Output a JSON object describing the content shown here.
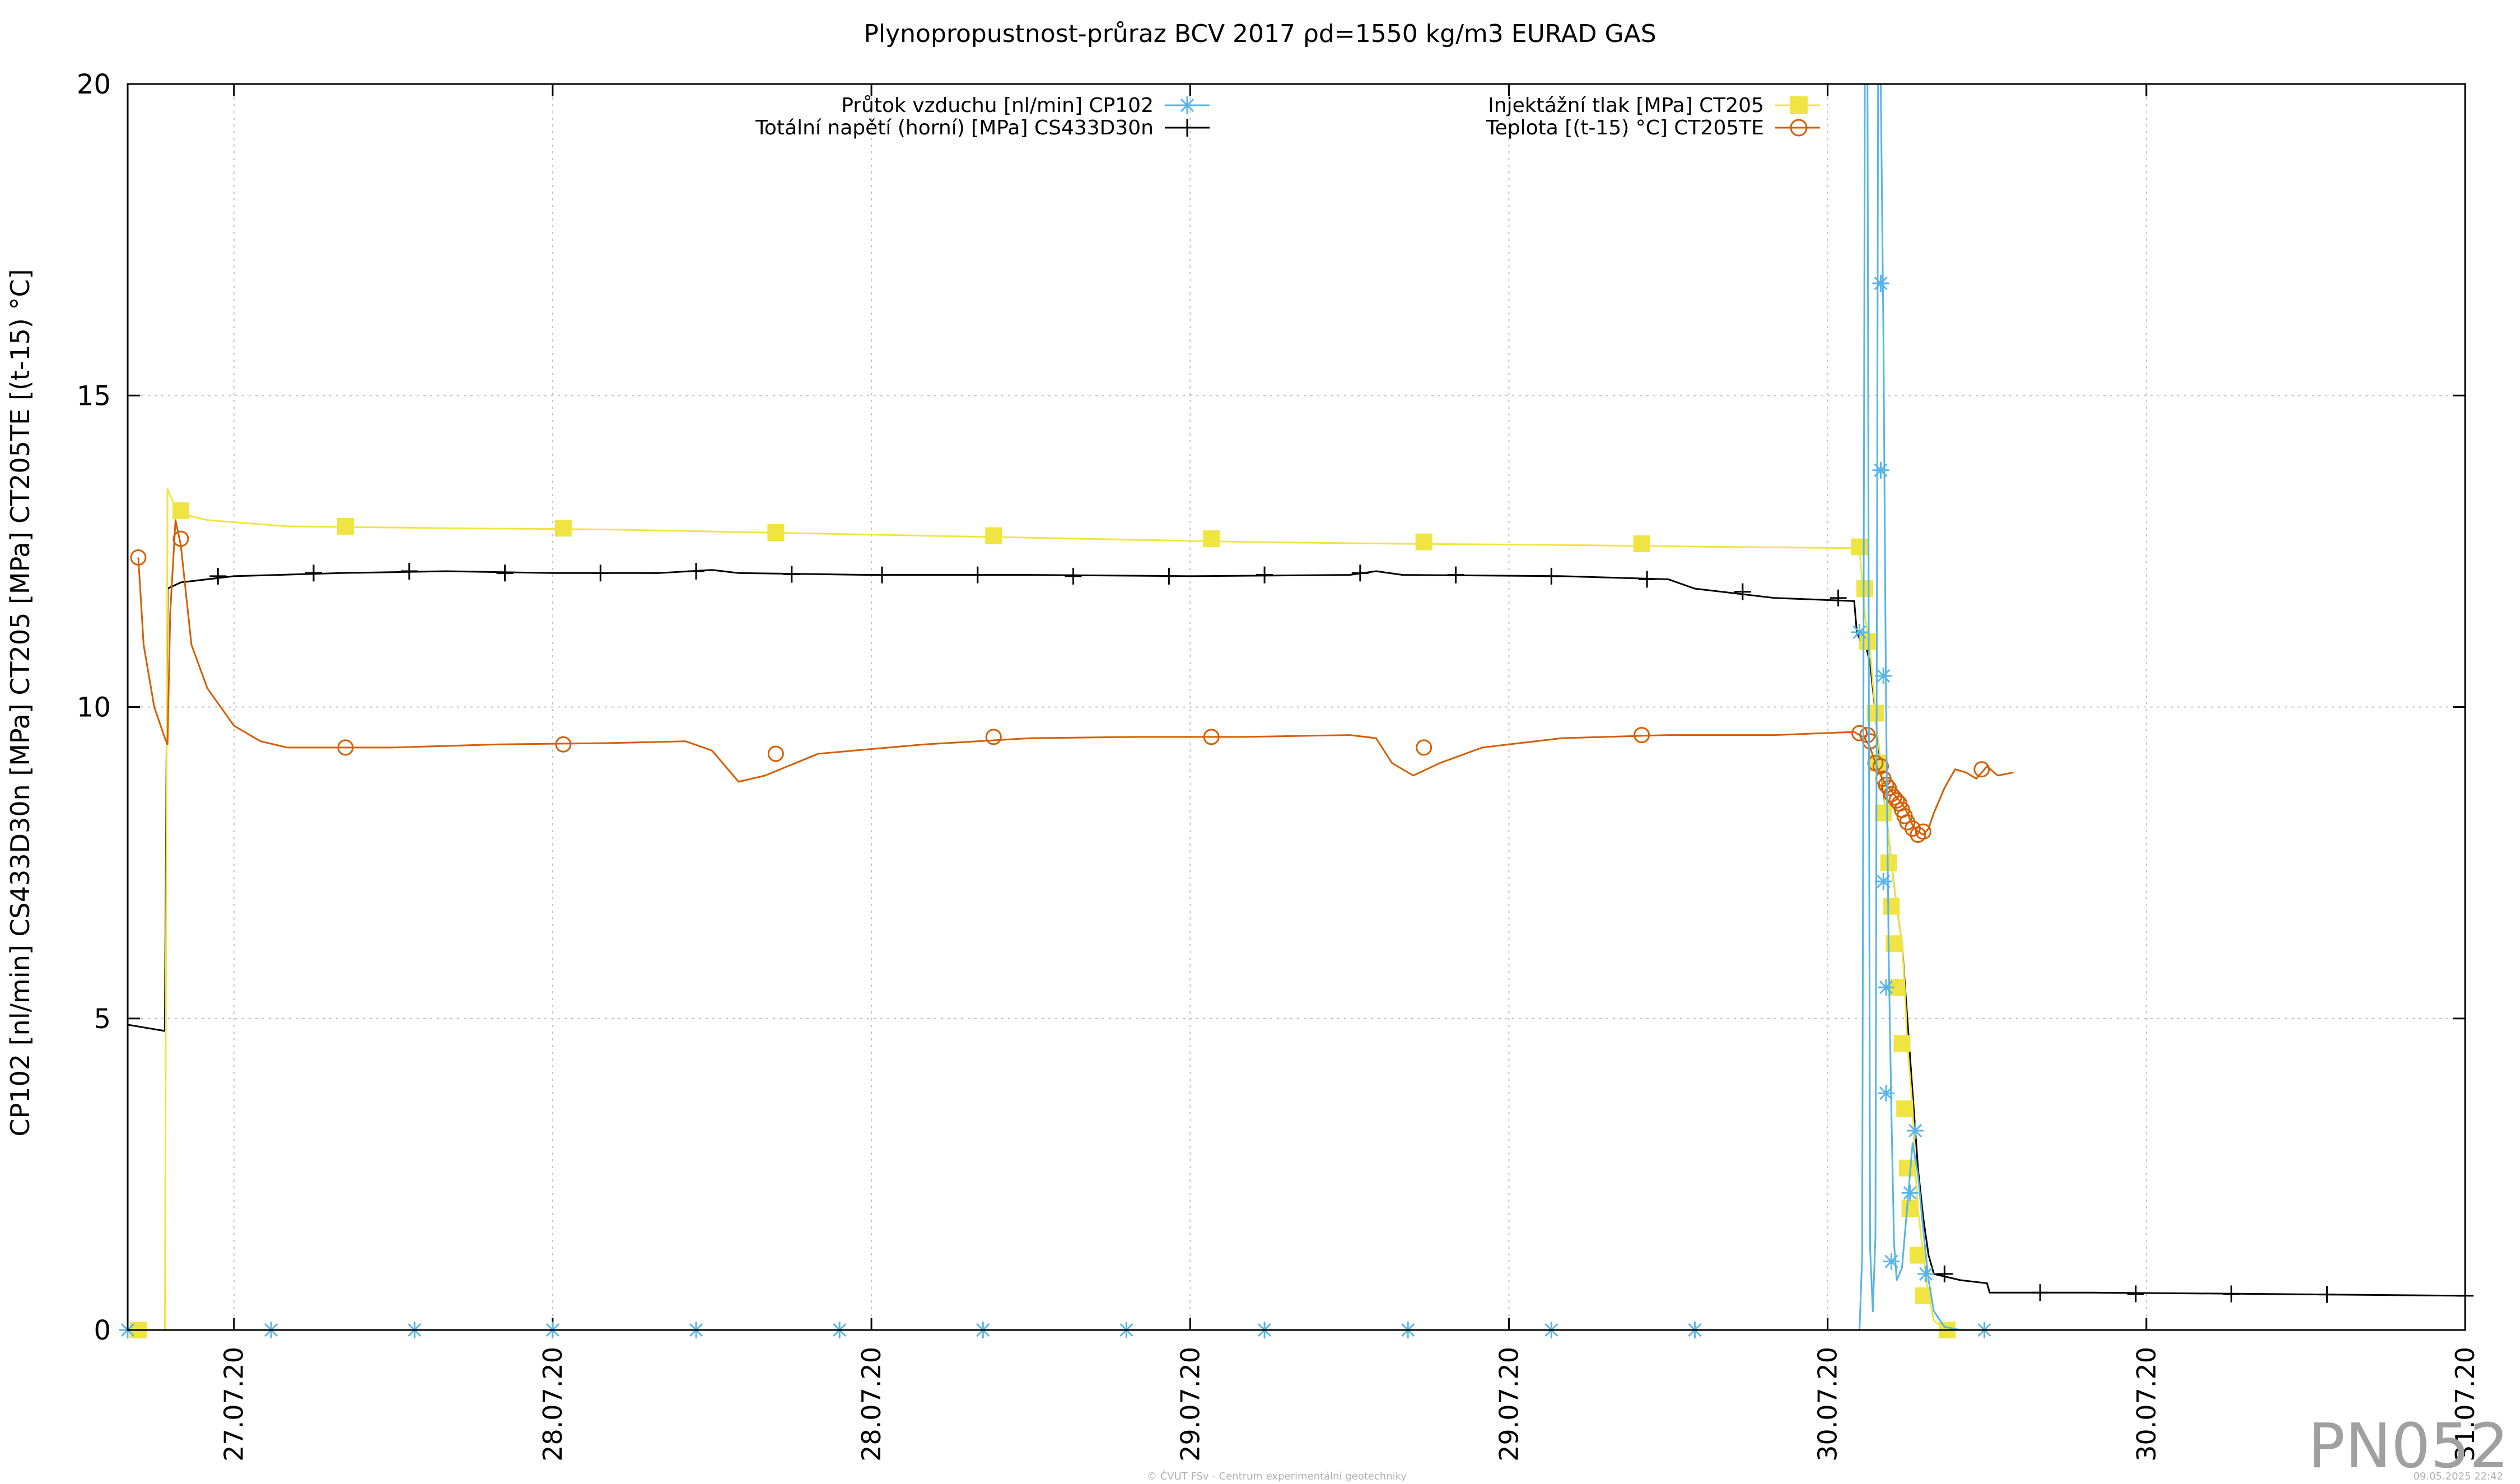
{
  "title": "Plynopropustnost-průraz BCV 2017 ρd=1550 kg/m3 EURAD GAS",
  "watermark": "PN052",
  "footer_left": "© ČVUT FSv - Centrum experimentální geotechniky",
  "footer_right": "09.05.2025 22:42",
  "colors": {
    "CP102": "#56b4e9",
    "CT205": "#f0e442",
    "CS433D30n": "#000000",
    "CT205TE": "#d55e00",
    "grid": "#c0c0c0"
  },
  "chart_data": {
    "type": "line",
    "title": "Plynopropustnost-průraz BCV 2017 ρd=1550 kg/m3 EURAD GAS",
    "xlabel": "",
    "ylabel": "CP102 [nl/min] CS433D30n [MPa] CT205 [MPa] CT205TE [(t-15) °C]",
    "xlim": [
      0,
      4.4
    ],
    "ylim": [
      0,
      20
    ],
    "yticks": [
      0,
      5,
      10,
      15,
      20
    ],
    "xticks": [
      {
        "x": 0.2,
        "label": "27.07.20"
      },
      {
        "x": 0.8,
        "label": "28.07.20"
      },
      {
        "x": 1.4,
        "label": "28.07.20"
      },
      {
        "x": 2.0,
        "label": "29.07.20"
      },
      {
        "x": 2.6,
        "label": "29.07.20"
      },
      {
        "x": 3.2,
        "label": "30.07.20"
      },
      {
        "x": 3.8,
        "label": "30.07.20"
      },
      {
        "x": 4.4,
        "label": "31.07.20"
      }
    ],
    "grid": true,
    "legend_placement": "top",
    "series": [
      {
        "key": "CP102",
        "name": "Průtok vzduchu [nl/min] CP102",
        "marker": "asterisk",
        "points": [
          [
            0.0,
            0
          ],
          [
            3.26,
            0
          ],
          [
            3.265,
            1.2
          ],
          [
            3.27,
            20
          ],
          [
            3.275,
            20
          ],
          [
            3.28,
            1.3
          ],
          [
            3.285,
            0.3
          ],
          [
            3.29,
            1.5
          ],
          [
            3.295,
            20
          ],
          [
            3.3,
            20
          ],
          [
            3.305,
            16
          ],
          [
            3.31,
            10
          ],
          [
            3.315,
            6
          ],
          [
            3.32,
            3.5
          ],
          [
            3.325,
            1.4
          ],
          [
            3.33,
            0.8
          ],
          [
            3.34,
            1.0
          ],
          [
            3.35,
            2.0
          ],
          [
            3.36,
            3.0
          ],
          [
            3.37,
            2.5
          ],
          [
            3.38,
            1.6
          ],
          [
            3.39,
            0.8
          ],
          [
            3.4,
            0.3
          ],
          [
            3.42,
            0.05
          ],
          [
            3.45,
            0
          ],
          [
            3.5,
            0
          ]
        ],
        "marks": [
          [
            0.0,
            0
          ],
          [
            0.27,
            0
          ],
          [
            0.54,
            0
          ],
          [
            0.8,
            0
          ],
          [
            1.07,
            0
          ],
          [
            1.34,
            0
          ],
          [
            1.61,
            0
          ],
          [
            1.88,
            0
          ],
          [
            2.14,
            0
          ],
          [
            2.41,
            0
          ],
          [
            2.68,
            0
          ],
          [
            2.95,
            0
          ],
          [
            3.26,
            11.2
          ],
          [
            3.3,
            16.8
          ],
          [
            3.3,
            13.8
          ],
          [
            3.305,
            10.5
          ],
          [
            3.305,
            7.2
          ],
          [
            3.31,
            5.5
          ],
          [
            3.31,
            3.8
          ],
          [
            3.32,
            1.1
          ],
          [
            3.355,
            2.2
          ],
          [
            3.365,
            3.2
          ],
          [
            3.385,
            0.9
          ],
          [
            3.495,
            0
          ]
        ]
      },
      {
        "key": "CT205",
        "name": "Injektážní tlak [MPa] CT205",
        "marker": "square",
        "points": [
          [
            0.0,
            0
          ],
          [
            0.07,
            0
          ],
          [
            0.075,
            13.5
          ],
          [
            0.085,
            13.3
          ],
          [
            0.1,
            13.1
          ],
          [
            0.15,
            13.0
          ],
          [
            0.3,
            12.9
          ],
          [
            0.6,
            12.87
          ],
          [
            0.9,
            12.85
          ],
          [
            1.2,
            12.8
          ],
          [
            1.5,
            12.75
          ],
          [
            1.8,
            12.7
          ],
          [
            2.1,
            12.65
          ],
          [
            2.4,
            12.62
          ],
          [
            2.7,
            12.6
          ],
          [
            3.0,
            12.57
          ],
          [
            3.26,
            12.55
          ],
          [
            3.265,
            12.0
          ],
          [
            3.27,
            11.5
          ],
          [
            3.28,
            10.9
          ],
          [
            3.29,
            9.9
          ],
          [
            3.3,
            9.1
          ],
          [
            3.31,
            8.3
          ],
          [
            3.32,
            7.5
          ],
          [
            3.33,
            6.8
          ],
          [
            3.34,
            6.2
          ],
          [
            3.345,
            5.5
          ],
          [
            3.35,
            4.6
          ],
          [
            3.36,
            3.55
          ],
          [
            3.365,
            2.6
          ],
          [
            3.37,
            1.95
          ],
          [
            3.38,
            1.2
          ],
          [
            3.39,
            0.55
          ],
          [
            3.4,
            0.15
          ],
          [
            3.42,
            0.02
          ],
          [
            3.44,
            0
          ]
        ],
        "marks": [
          [
            0.02,
            0
          ],
          [
            0.1,
            13.15
          ],
          [
            0.41,
            12.9
          ],
          [
            0.82,
            12.87
          ],
          [
            1.22,
            12.8
          ],
          [
            1.63,
            12.75
          ],
          [
            2.04,
            12.7
          ],
          [
            2.44,
            12.65
          ],
          [
            2.85,
            12.62
          ],
          [
            3.26,
            12.57
          ],
          [
            3.27,
            11.9
          ],
          [
            3.275,
            11.05
          ],
          [
            3.29,
            9.9
          ],
          [
            3.295,
            9.1
          ],
          [
            3.305,
            8.3
          ],
          [
            3.315,
            7.5
          ],
          [
            3.32,
            6.8
          ],
          [
            3.325,
            6.2
          ],
          [
            3.33,
            5.5
          ],
          [
            3.34,
            4.6
          ],
          [
            3.345,
            3.55
          ],
          [
            3.35,
            2.6
          ],
          [
            3.355,
            1.95
          ],
          [
            3.37,
            1.2
          ],
          [
            3.38,
            0.55
          ],
          [
            3.425,
            0
          ]
        ]
      },
      {
        "key": "CS433D30n",
        "name": "Totální napětí (horní) [MPa] CS433D30n",
        "marker": "plus",
        "points": [
          [
            0.0,
            4.9
          ],
          [
            0.07,
            4.8
          ],
          [
            0.072,
            7.5
          ],
          [
            0.075,
            11.9
          ],
          [
            0.1,
            12.0
          ],
          [
            0.2,
            12.1
          ],
          [
            0.4,
            12.15
          ],
          [
            0.6,
            12.18
          ],
          [
            0.8,
            12.15
          ],
          [
            1.0,
            12.15
          ],
          [
            1.1,
            12.2
          ],
          [
            1.15,
            12.15
          ],
          [
            1.4,
            12.12
          ],
          [
            1.7,
            12.12
          ],
          [
            2.0,
            12.1
          ],
          [
            2.3,
            12.12
          ],
          [
            2.35,
            12.18
          ],
          [
            2.4,
            12.12
          ],
          [
            2.7,
            12.1
          ],
          [
            2.9,
            12.05
          ],
          [
            2.95,
            11.9
          ],
          [
            3.1,
            11.75
          ],
          [
            3.25,
            11.7
          ],
          [
            3.255,
            11.2
          ],
          [
            3.26,
            11.1
          ],
          [
            3.27,
            11.05
          ],
          [
            3.28,
            10.7
          ],
          [
            3.29,
            9.9
          ],
          [
            3.3,
            9.0
          ],
          [
            3.31,
            8.3
          ],
          [
            3.32,
            7.5
          ],
          [
            3.33,
            6.8
          ],
          [
            3.34,
            6.2
          ],
          [
            3.35,
            5.0
          ],
          [
            3.36,
            3.8
          ],
          [
            3.37,
            2.6
          ],
          [
            3.38,
            1.8
          ],
          [
            3.39,
            1.2
          ],
          [
            3.4,
            0.9
          ],
          [
            3.45,
            0.8
          ],
          [
            3.5,
            0.75
          ],
          [
            3.505,
            0.6
          ],
          [
            3.7,
            0.6
          ],
          [
            4.0,
            0.58
          ],
          [
            4.4,
            0.55
          ]
        ],
        "marks": [
          [
            0.17,
            12.1
          ],
          [
            0.35,
            12.15
          ],
          [
            0.53,
            12.18
          ],
          [
            0.71,
            12.15
          ],
          [
            0.89,
            12.15
          ],
          [
            1.07,
            12.18
          ],
          [
            1.25,
            12.13
          ],
          [
            1.42,
            12.12
          ],
          [
            1.6,
            12.12
          ],
          [
            1.78,
            12.1
          ],
          [
            1.96,
            12.1
          ],
          [
            2.14,
            12.12
          ],
          [
            2.32,
            12.15
          ],
          [
            2.5,
            12.12
          ],
          [
            2.68,
            12.1
          ],
          [
            2.86,
            12.05
          ],
          [
            3.04,
            11.85
          ],
          [
            3.22,
            11.75
          ],
          [
            3.42,
            0.9
          ],
          [
            3.6,
            0.6
          ],
          [
            3.78,
            0.58
          ],
          [
            3.96,
            0.58
          ],
          [
            4.14,
            0.57
          ],
          [
            4.4,
            0.55
          ]
        ]
      },
      {
        "key": "CT205TE",
        "name": "Teplota [(t-15) °C] CT205TE",
        "marker": "circle",
        "points": [
          [
            0.02,
            12.4
          ],
          [
            0.03,
            11.0
          ],
          [
            0.05,
            10.0
          ],
          [
            0.07,
            9.5
          ],
          [
            0.075,
            9.4
          ],
          [
            0.08,
            11.5
          ],
          [
            0.09,
            13.0
          ],
          [
            0.1,
            12.6
          ],
          [
            0.12,
            11.0
          ],
          [
            0.15,
            10.3
          ],
          [
            0.2,
            9.7
          ],
          [
            0.25,
            9.45
          ],
          [
            0.3,
            9.35
          ],
          [
            0.5,
            9.35
          ],
          [
            0.7,
            9.4
          ],
          [
            0.9,
            9.42
          ],
          [
            1.05,
            9.45
          ],
          [
            1.1,
            9.3
          ],
          [
            1.15,
            8.8
          ],
          [
            1.2,
            8.9
          ],
          [
            1.3,
            9.25
          ],
          [
            1.5,
            9.4
          ],
          [
            1.7,
            9.5
          ],
          [
            1.9,
            9.52
          ],
          [
            2.1,
            9.52
          ],
          [
            2.3,
            9.55
          ],
          [
            2.35,
            9.5
          ],
          [
            2.38,
            9.1
          ],
          [
            2.42,
            8.9
          ],
          [
            2.47,
            9.1
          ],
          [
            2.55,
            9.35
          ],
          [
            2.7,
            9.5
          ],
          [
            2.9,
            9.55
          ],
          [
            3.1,
            9.55
          ],
          [
            3.25,
            9.6
          ],
          [
            3.27,
            9.5
          ],
          [
            3.28,
            9.35
          ],
          [
            3.29,
            9.1
          ],
          [
            3.3,
            8.9
          ],
          [
            3.31,
            8.75
          ],
          [
            3.32,
            8.65
          ],
          [
            3.33,
            8.55
          ],
          [
            3.34,
            8.45
          ],
          [
            3.35,
            8.3
          ],
          [
            3.36,
            8.1
          ],
          [
            3.37,
            8.0
          ],
          [
            3.38,
            7.95
          ],
          [
            3.39,
            8.05
          ],
          [
            3.4,
            8.3
          ],
          [
            3.42,
            8.7
          ],
          [
            3.44,
            9.0
          ],
          [
            3.46,
            8.95
          ],
          [
            3.48,
            8.85
          ],
          [
            3.5,
            9.05
          ],
          [
            3.52,
            8.9
          ],
          [
            3.55,
            8.95
          ]
        ],
        "marks": [
          [
            0.02,
            12.4
          ],
          [
            0.1,
            12.7
          ],
          [
            0.41,
            9.35
          ],
          [
            0.82,
            9.4
          ],
          [
            1.22,
            9.25
          ],
          [
            1.63,
            9.52
          ],
          [
            2.04,
            9.52
          ],
          [
            2.44,
            9.35
          ],
          [
            2.85,
            9.55
          ],
          [
            3.26,
            9.58
          ],
          [
            3.275,
            9.55
          ],
          [
            3.28,
            9.45
          ],
          [
            3.29,
            9.1
          ],
          [
            3.3,
            9.05
          ],
          [
            3.305,
            8.85
          ],
          [
            3.31,
            8.75
          ],
          [
            3.315,
            8.7
          ],
          [
            3.32,
            8.6
          ],
          [
            3.325,
            8.55
          ],
          [
            3.33,
            8.5
          ],
          [
            3.335,
            8.45
          ],
          [
            3.34,
            8.35
          ],
          [
            3.345,
            8.25
          ],
          [
            3.35,
            8.15
          ],
          [
            3.36,
            8.05
          ],
          [
            3.37,
            7.95
          ],
          [
            3.38,
            8.0
          ],
          [
            3.49,
            9.0
          ]
        ]
      }
    ]
  }
}
